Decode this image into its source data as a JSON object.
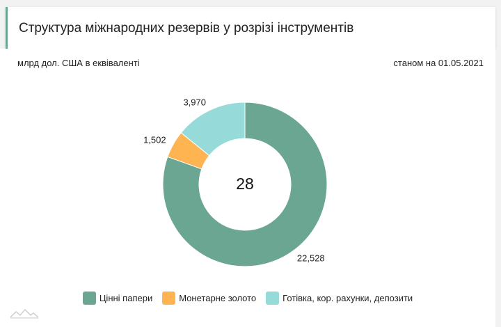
{
  "header": {
    "title": "Структура міжнародних резервів у розрізі інструментів"
  },
  "units": "млрд дол. США в еквіваленті",
  "as_of": "станом на 01.05.2021",
  "colors": {
    "securities": "#6aa692",
    "gold": "#ffb452",
    "cash": "#96dada",
    "accent": "#6aa692"
  },
  "chart_data": {
    "type": "pie",
    "variant": "donut",
    "total_label": "28",
    "series": [
      {
        "name": "Цінні папери",
        "value": 22.528,
        "label": "22,528",
        "color": "#6aa692"
      },
      {
        "name": "Монетарне золото",
        "value": 1.502,
        "label": "1,502",
        "color": "#ffb452"
      },
      {
        "name": "Готівка, кор. рахунки, депозити",
        "value": 3.97,
        "label": "3,970",
        "color": "#96dada"
      }
    ],
    "legend_position": "bottom"
  },
  "logo": {
    "icon": "mountain-logo-icon"
  }
}
